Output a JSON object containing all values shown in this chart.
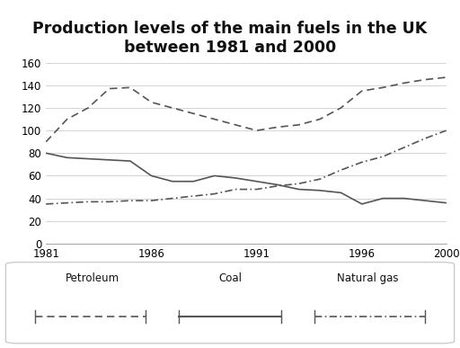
{
  "title": "Production levels of the main fuels in the UK\nbetween 1981 and 2000",
  "years": [
    1981,
    1982,
    1983,
    1984,
    1985,
    1986,
    1987,
    1988,
    1989,
    1990,
    1991,
    1992,
    1993,
    1994,
    1995,
    1996,
    1997,
    1998,
    1999,
    2000
  ],
  "petroleum": [
    80,
    76,
    75,
    74,
    73,
    60,
    55,
    55,
    60,
    58,
    55,
    52,
    48,
    47,
    45,
    35,
    40,
    40,
    38,
    36
  ],
  "coal": [
    90,
    110,
    120,
    137,
    138,
    125,
    120,
    115,
    110,
    105,
    100,
    103,
    105,
    110,
    120,
    135,
    138,
    142,
    145,
    147
  ],
  "natural_gas": [
    35,
    36,
    37,
    37,
    38,
    38,
    40,
    42,
    44,
    48,
    48,
    51,
    53,
    57,
    65,
    72,
    77,
    85,
    93,
    100
  ],
  "ylim": [
    0,
    160
  ],
  "yticks": [
    0,
    20,
    40,
    60,
    80,
    100,
    120,
    140,
    160
  ],
  "xticks": [
    1981,
    1986,
    1991,
    1996,
    2000
  ],
  "bg_color": "#ffffff",
  "grid_color": "#cccccc",
  "line_color": "#555555",
  "legend_labels": [
    "Petroleum",
    "Coal",
    "Natural gas"
  ],
  "title_fontsize": 12.5
}
